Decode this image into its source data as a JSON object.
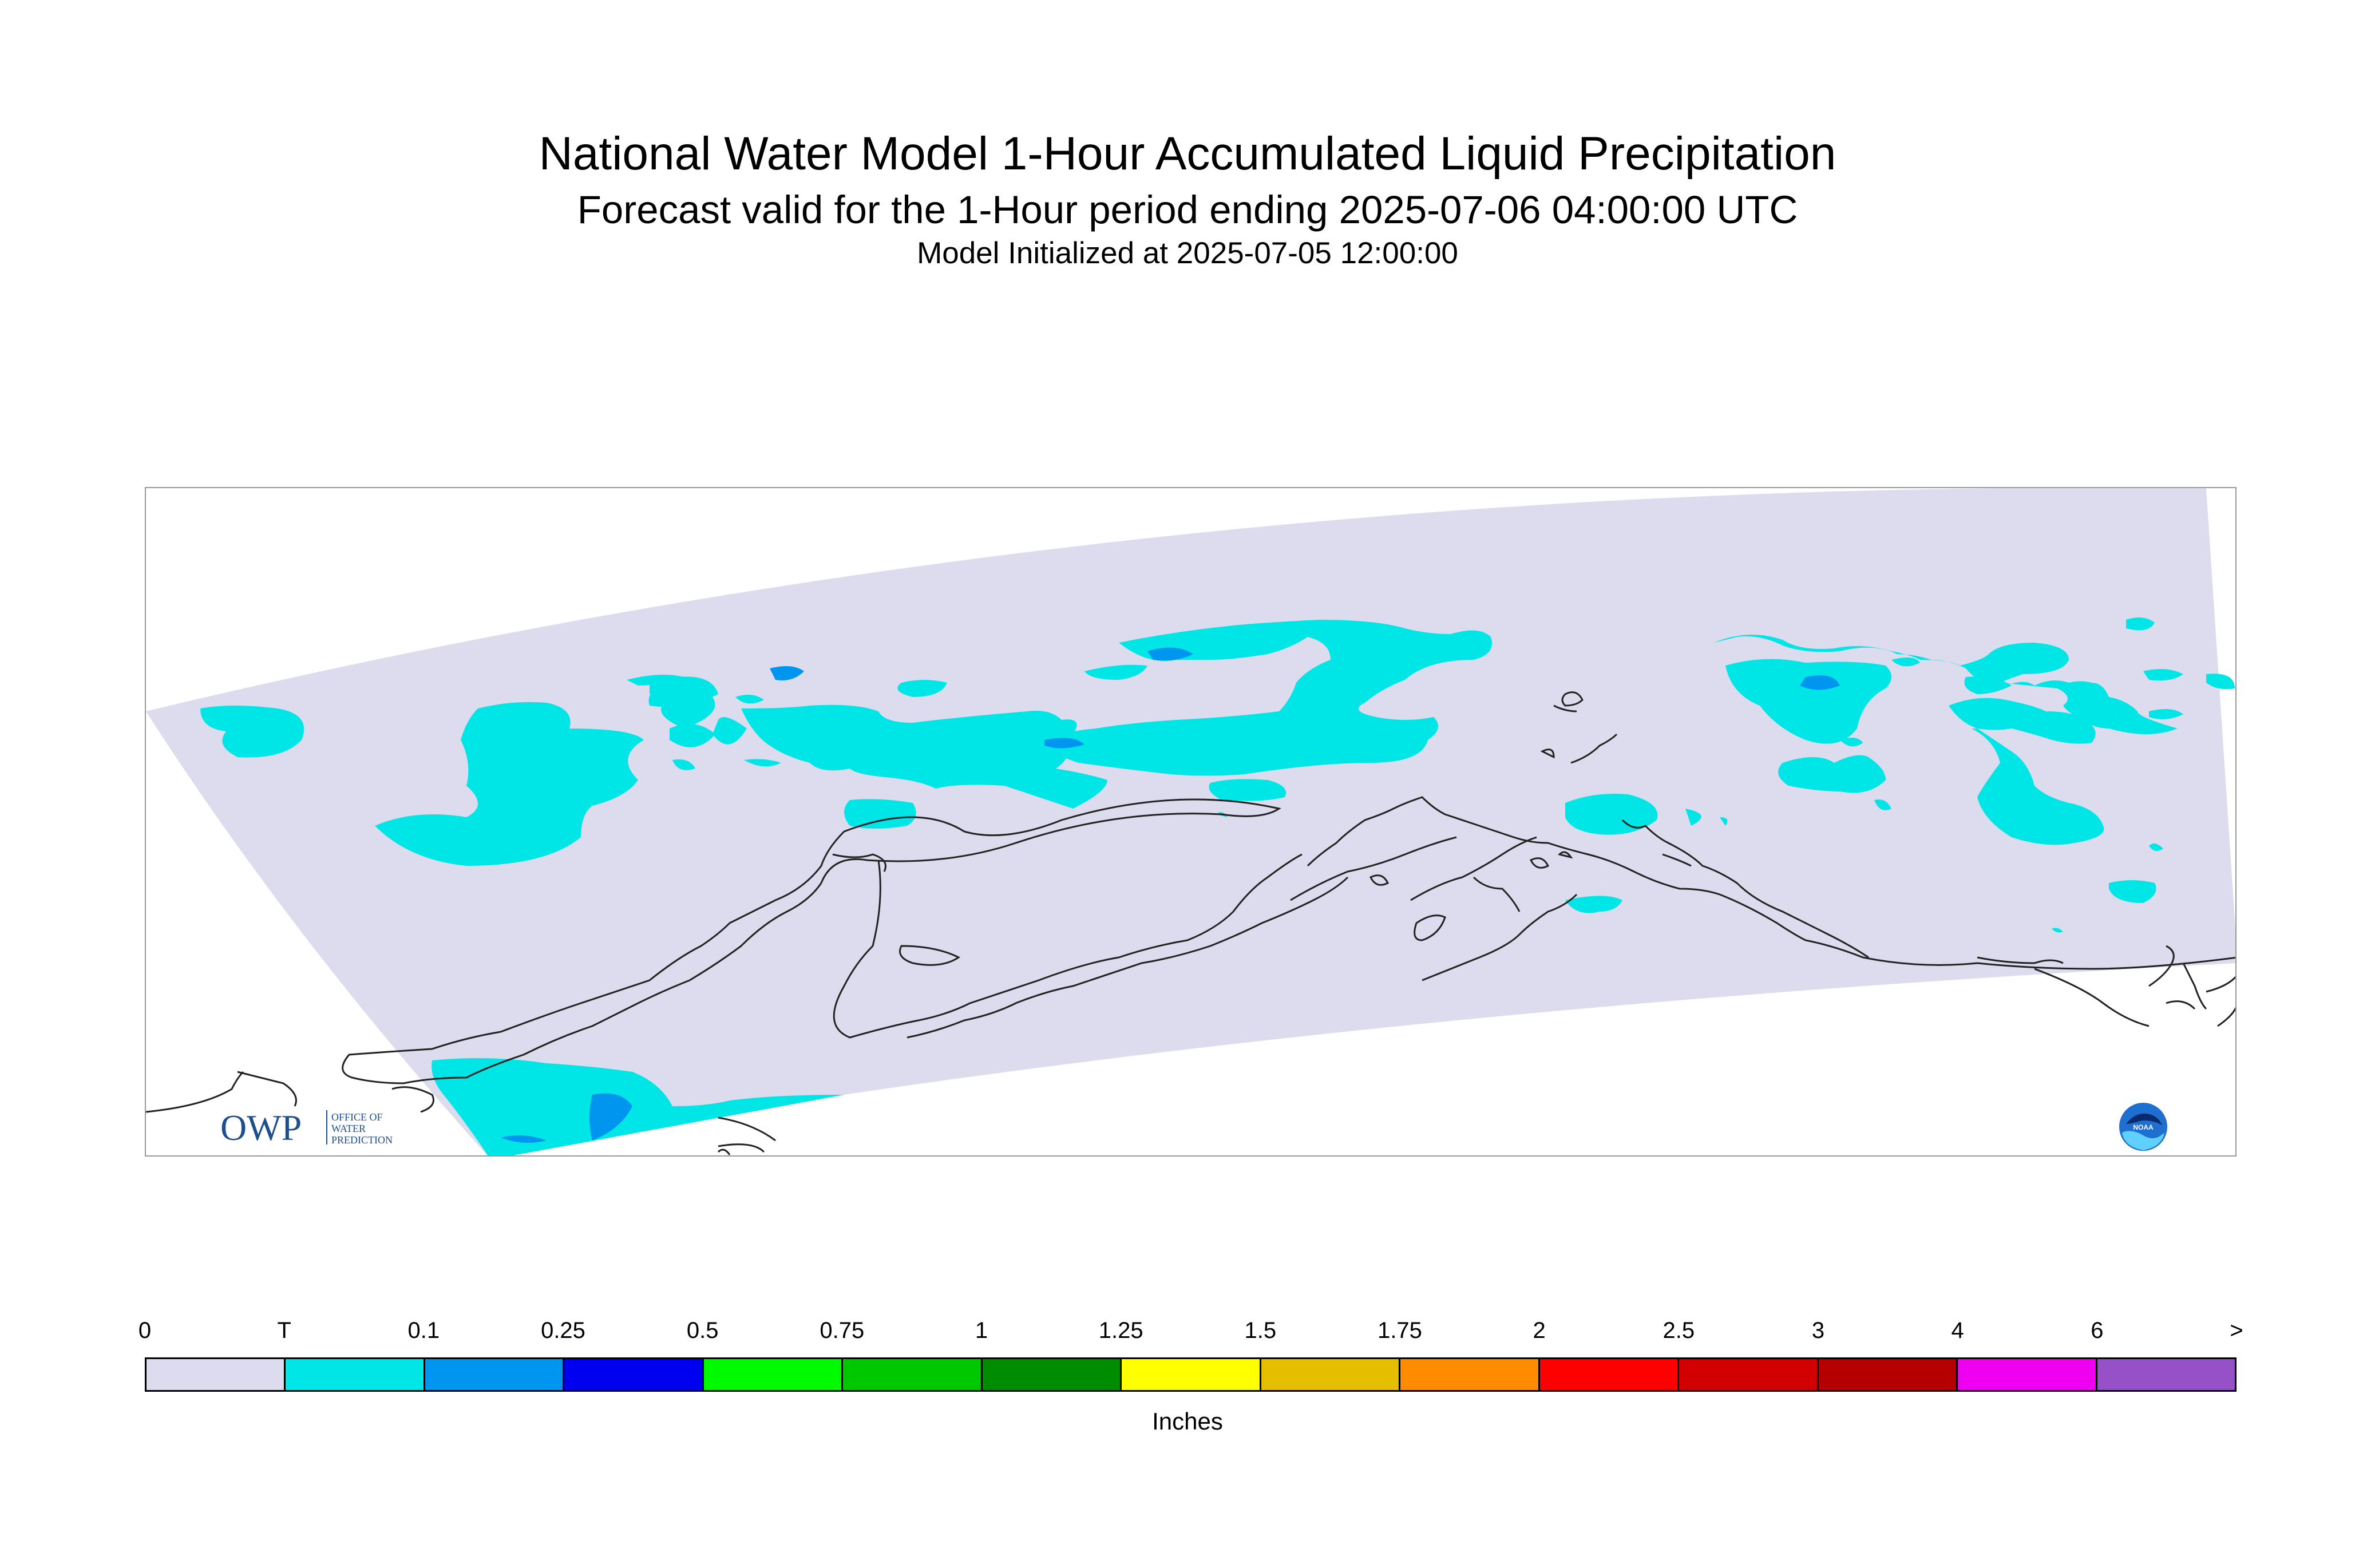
{
  "header": {
    "title": "National Water Model 1-Hour Accumulated Liquid Precipitation",
    "subtitle": "Forecast valid for the 1-Hour period ending 2025-07-06 04:00:00 UTC",
    "init_line": "Model Initialized at 2025-07-05 12:00:00"
  },
  "logos": {
    "owp_mark": "OWP",
    "owp_text": [
      "OFFICE OF",
      "WATER",
      "PREDICTION"
    ],
    "noaa_text": "NOAA"
  },
  "colors": {
    "domain_fill": "#dcdcee",
    "trace": "#00e6e6",
    "light_blue": "#0096f0",
    "coast": "#222222"
  },
  "legend": {
    "units": "Inches",
    "ticks": [
      "0",
      "T",
      "0.1",
      "0.25",
      "0.5",
      "0.75",
      "1",
      "1.25",
      "1.5",
      "1.75",
      "2",
      "2.5",
      "3",
      "4",
      "6",
      ">"
    ],
    "colors": [
      "#dcdcee",
      "#00e6e6",
      "#0096f0",
      "#0000f0",
      "#00fa00",
      "#00c800",
      "#008c00",
      "#ffff00",
      "#e6be00",
      "#ff8c00",
      "#ff0000",
      "#d20000",
      "#b40000",
      "#f000f0",
      "#9650c8"
    ]
  }
}
